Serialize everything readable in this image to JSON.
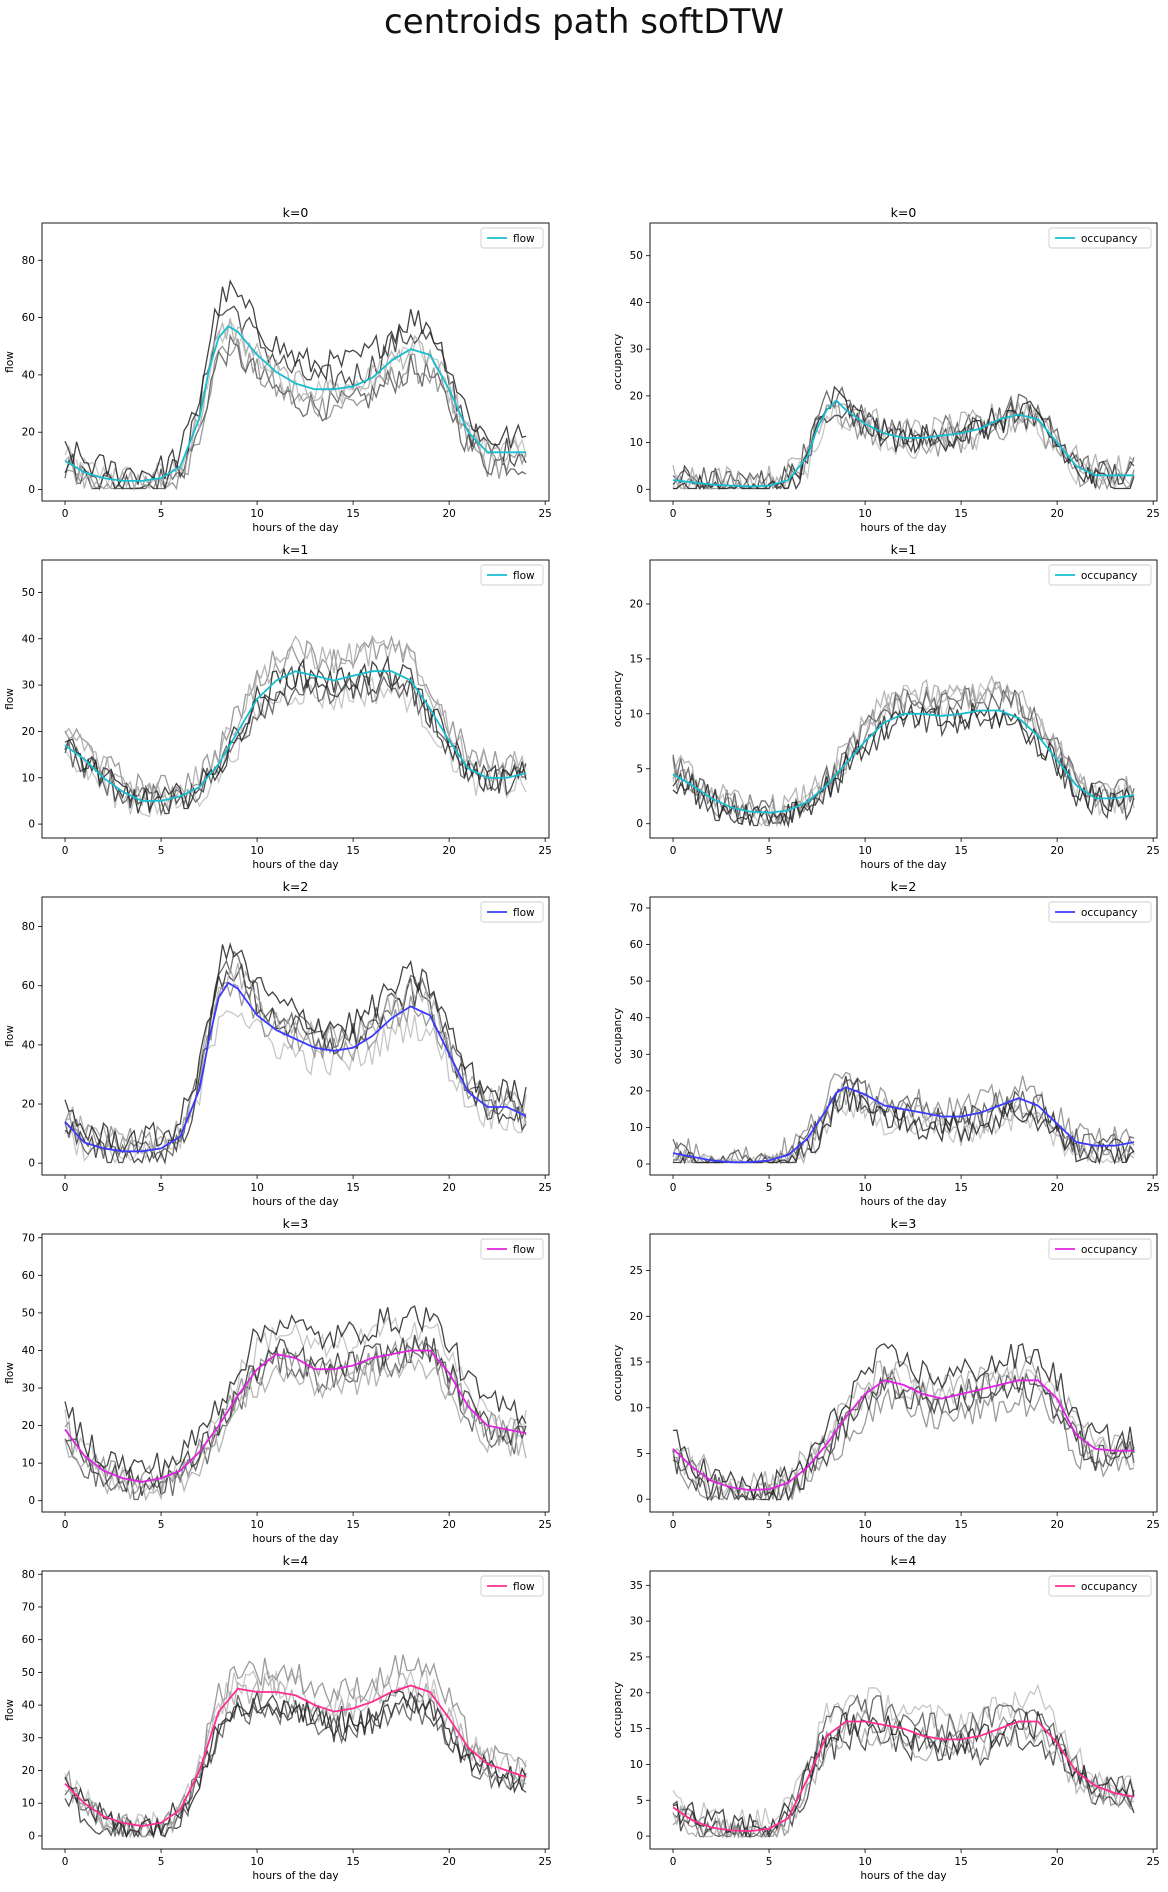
{
  "figure": {
    "title": "centroids path softDTW"
  },
  "chart_data": [
    {
      "type": "line",
      "title": "k=0",
      "xlabel": "hours of the day",
      "ylabel": "flow",
      "xlim": [
        -1.2,
        25.2
      ],
      "ylim": [
        -4,
        93
      ],
      "xticks": [
        0,
        5,
        10,
        15,
        20,
        25
      ],
      "yticks": [
        0,
        20,
        40,
        60,
        80
      ],
      "legend": "top-right",
      "grid": false,
      "series": [
        {
          "name": "flow",
          "color": "#17becf",
          "x": [
            0,
            1,
            2,
            3,
            4,
            5,
            6,
            7,
            7.5,
            8,
            8.5,
            9,
            10,
            11,
            12,
            13,
            14,
            15,
            16,
            17,
            18,
            19,
            20,
            21,
            22,
            23,
            24
          ],
          "y": [
            10,
            6,
            4,
            3,
            3,
            4,
            8,
            25,
            42,
            53,
            57,
            55,
            47,
            41,
            37,
            35,
            35,
            36,
            39,
            45,
            49,
            47,
            35,
            20,
            13,
            13,
            13
          ]
        }
      ]
    },
    {
      "type": "line",
      "title": "k=0",
      "xlabel": "hours of the day",
      "ylabel": "occupancy",
      "xlim": [
        -1.2,
        25.2
      ],
      "ylim": [
        -2.5,
        57
      ],
      "xticks": [
        0,
        5,
        10,
        15,
        20,
        25
      ],
      "yticks": [
        0,
        10,
        20,
        30,
        40,
        50
      ],
      "legend": "top-right",
      "grid": false,
      "series": [
        {
          "name": "occupancy",
          "color": "#17becf",
          "x": [
            0,
            1,
            2,
            3,
            4,
            5,
            6,
            7,
            7.5,
            8,
            8.5,
            9,
            10,
            11,
            12,
            13,
            14,
            15,
            16,
            17,
            18,
            19,
            20,
            21,
            22,
            23,
            24
          ],
          "y": [
            2,
            1.5,
            1,
            0.8,
            0.6,
            0.8,
            2,
            7,
            13,
            17,
            19,
            17,
            14,
            12,
            11,
            11,
            11.5,
            12,
            13,
            15,
            16,
            15,
            10,
            5,
            3,
            3,
            3
          ]
        }
      ]
    },
    {
      "type": "line",
      "title": "k=1",
      "xlabel": "hours of the day",
      "ylabel": "flow",
      "xlim": [
        -1.2,
        25.2
      ],
      "ylim": [
        -3,
        57
      ],
      "xticks": [
        0,
        5,
        10,
        15,
        20,
        25
      ],
      "yticks": [
        0,
        10,
        20,
        30,
        40,
        50
      ],
      "legend": "top-right",
      "grid": false,
      "series": [
        {
          "name": "flow",
          "color": "#17becf",
          "x": [
            0,
            1,
            2,
            3,
            4,
            5,
            6,
            7,
            8,
            9,
            10,
            11,
            12,
            13,
            14,
            15,
            16,
            17,
            18,
            19,
            20,
            21,
            22,
            23,
            24
          ],
          "y": [
            17,
            14,
            10,
            7,
            5,
            5,
            6,
            8,
            13,
            20,
            27,
            31,
            33,
            32,
            31,
            32,
            33,
            33,
            31,
            25,
            18,
            12,
            10,
            10,
            11
          ]
        }
      ]
    },
    {
      "type": "line",
      "title": "k=1",
      "xlabel": "hours of the day",
      "ylabel": "occupancy",
      "xlim": [
        -1.2,
        25.2
      ],
      "ylim": [
        -1.3,
        24
      ],
      "xticks": [
        0,
        5,
        10,
        15,
        20,
        25
      ],
      "yticks": [
        0,
        5,
        10,
        15,
        20
      ],
      "legend": "top-right",
      "grid": false,
      "series": [
        {
          "name": "occupancy",
          "color": "#17becf",
          "x": [
            0,
            1,
            2,
            3,
            4,
            5,
            6,
            7,
            8,
            9,
            10,
            11,
            12,
            13,
            14,
            15,
            16,
            17,
            18,
            19,
            20,
            21,
            22,
            23,
            24
          ],
          "y": [
            4.5,
            3.5,
            2.3,
            1.5,
            1.1,
            1.0,
            1.2,
            2,
            3.5,
            5.5,
            7.5,
            9.2,
            10,
            10,
            9.8,
            10,
            10.3,
            10.3,
            9.6,
            8,
            5.8,
            3.5,
            2.3,
            2.3,
            2.6
          ]
        }
      ]
    },
    {
      "type": "line",
      "title": "k=2",
      "xlabel": "hours of the day",
      "ylabel": "flow",
      "xlim": [
        -1.2,
        25.2
      ],
      "ylim": [
        -4,
        90
      ],
      "xticks": [
        0,
        5,
        10,
        15,
        20,
        25
      ],
      "yticks": [
        0,
        20,
        40,
        60,
        80
      ],
      "legend": "top-right",
      "grid": false,
      "series": [
        {
          "name": "flow",
          "color": "#3b3bff",
          "x": [
            0,
            1,
            2,
            3,
            4,
            5,
            6,
            7,
            7.5,
            8,
            8.5,
            9,
            10,
            11,
            12,
            13,
            14,
            15,
            16,
            17,
            18,
            19,
            20,
            21,
            22,
            23,
            24
          ],
          "y": [
            14,
            7,
            5,
            4,
            4,
            5,
            9,
            25,
            42,
            56,
            61,
            59,
            50,
            45,
            42,
            39,
            38,
            39,
            43,
            49,
            53,
            50,
            37,
            24,
            19,
            19,
            16
          ]
        }
      ]
    },
    {
      "type": "line",
      "title": "k=2",
      "xlabel": "hours of the day",
      "ylabel": "occupancy",
      "xlim": [
        -1.2,
        25.2
      ],
      "ylim": [
        -3,
        73
      ],
      "xticks": [
        0,
        5,
        10,
        15,
        20,
        25
      ],
      "yticks": [
        0,
        10,
        20,
        30,
        40,
        50,
        60,
        70
      ],
      "legend": "top-right",
      "grid": false,
      "series": [
        {
          "name": "occupancy",
          "color": "#3b3bff",
          "x": [
            0,
            1,
            2,
            3,
            4,
            5,
            6,
            7,
            8,
            8.5,
            9,
            10,
            11,
            12,
            13,
            14,
            15,
            16,
            17,
            18,
            19,
            20,
            21,
            22,
            23,
            24
          ],
          "y": [
            3,
            2,
            1,
            0.5,
            0.5,
            1,
            2.5,
            7,
            15,
            19.5,
            21,
            19,
            16,
            15,
            14,
            13,
            13,
            14,
            16,
            18,
            16,
            11,
            6,
            5,
            5,
            6
          ]
        }
      ]
    },
    {
      "type": "line",
      "title": "k=3",
      "xlabel": "hours of the day",
      "ylabel": "flow",
      "xlim": [
        -1.2,
        25.2
      ],
      "ylim": [
        -3,
        71
      ],
      "xticks": [
        0,
        5,
        10,
        15,
        20,
        25
      ],
      "yticks": [
        0,
        10,
        20,
        30,
        40,
        50,
        60,
        70
      ],
      "legend": "top-right",
      "grid": false,
      "series": [
        {
          "name": "flow",
          "color": "#e024e0",
          "x": [
            0,
            1,
            2,
            3,
            4,
            5,
            6,
            7,
            8,
            9,
            10,
            11,
            12,
            13,
            14,
            15,
            16,
            17,
            18,
            19,
            20,
            21,
            22,
            23,
            24
          ],
          "y": [
            19,
            12,
            8,
            6,
            5,
            6,
            8,
            13,
            20,
            28,
            35,
            39,
            38,
            35,
            35,
            36,
            38,
            39,
            40,
            40,
            34,
            25,
            20,
            19,
            18
          ]
        }
      ]
    },
    {
      "type": "line",
      "title": "k=3",
      "xlabel": "hours of the day",
      "ylabel": "occupancy",
      "xlim": [
        -1.2,
        25.2
      ],
      "ylim": [
        -1.4,
        29
      ],
      "xticks": [
        0,
        5,
        10,
        15,
        20,
        25
      ],
      "yticks": [
        0,
        5,
        10,
        15,
        20,
        25
      ],
      "legend": "top-right",
      "grid": false,
      "series": [
        {
          "name": "occupancy",
          "color": "#e024e0",
          "x": [
            0,
            1,
            2,
            3,
            4,
            5,
            6,
            7,
            8,
            9,
            10,
            11,
            12,
            13,
            14,
            15,
            16,
            17,
            18,
            19,
            20,
            21,
            22,
            23,
            24
          ],
          "y": [
            5.5,
            3.5,
            2,
            1.3,
            1,
            1.1,
            1.8,
            3.5,
            6,
            9,
            11.5,
            13,
            12.5,
            11.5,
            11,
            11.5,
            12,
            12.5,
            13,
            13,
            11,
            7,
            5.5,
            5.3,
            5.3
          ]
        }
      ]
    },
    {
      "type": "line",
      "title": "k=4",
      "xlabel": "hours of the day",
      "ylabel": "flow",
      "xlim": [
        -1.2,
        25.2
      ],
      "ylim": [
        -4,
        81
      ],
      "xticks": [
        0,
        5,
        10,
        15,
        20,
        25
      ],
      "yticks": [
        0,
        10,
        20,
        30,
        40,
        50,
        60,
        70,
        80
      ],
      "legend": "top-right",
      "grid": false,
      "series": [
        {
          "name": "flow",
          "color": "#ff2d8f",
          "x": [
            0,
            1,
            2,
            3,
            4,
            5,
            6,
            7,
            8,
            9,
            10,
            11,
            12,
            13,
            14,
            15,
            16,
            17,
            18,
            19,
            20,
            21,
            22,
            23,
            24
          ],
          "y": [
            16,
            10,
            6,
            4,
            3,
            4,
            8,
            20,
            38,
            45,
            44,
            44,
            43,
            40,
            38,
            39,
            41,
            44,
            46,
            44,
            36,
            27,
            22,
            20,
            18
          ]
        }
      ]
    },
    {
      "type": "line",
      "title": "k=4",
      "xlabel": "hours of the day",
      "ylabel": "occupancy",
      "xlim": [
        -1.2,
        25.2
      ],
      "ylim": [
        -1.8,
        37
      ],
      "xticks": [
        0,
        5,
        10,
        15,
        20,
        25
      ],
      "yticks": [
        0,
        5,
        10,
        15,
        20,
        25,
        30,
        35
      ],
      "legend": "top-right",
      "grid": false,
      "series": [
        {
          "name": "occupancy",
          "color": "#ff2d8f",
          "x": [
            0,
            1,
            2,
            3,
            4,
            5,
            6,
            7,
            8,
            9,
            10,
            11,
            12,
            13,
            14,
            15,
            16,
            17,
            18,
            19,
            20,
            21,
            22,
            23,
            24
          ],
          "y": [
            4,
            2.2,
            1.2,
            0.8,
            0.7,
            1,
            2.5,
            8,
            14,
            16,
            16,
            15.5,
            15,
            14,
            13.5,
            13.5,
            14,
            15,
            16,
            16,
            13,
            9,
            7,
            6,
            5.5
          ]
        }
      ]
    }
  ]
}
